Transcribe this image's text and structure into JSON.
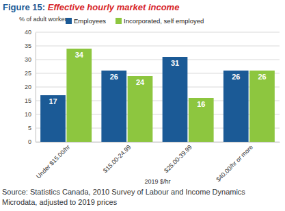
{
  "chart_data": {
    "type": "bar",
    "title": "Figure 15: Effective hourly market income",
    "y_label": "% of adult workers",
    "x_label": "2019 $/hr",
    "source": [
      "Source: Statistics Canada, 2010 Survey of Labour and Income Dynamics",
      "Microdata, adjusted to 2019 prices"
    ],
    "categories": [
      "Under $15.00/hr",
      "$15.00-24.99",
      "$25.00-39.99",
      "$40.00/hr or more"
    ],
    "series": [
      {
        "name": "Employees",
        "color": "#1b5a96",
        "values": [
          17,
          26,
          31,
          26
        ]
      },
      {
        "name": "Incorporated, self employed",
        "color": "#8dc63f",
        "values": [
          34,
          24,
          16,
          26
        ]
      }
    ],
    "ylim": [
      0,
      40
    ],
    "yticks": [
      0,
      5,
      10,
      15,
      20,
      25,
      30,
      35,
      40
    ],
    "grid": true,
    "data_labels": true,
    "legend": "top"
  }
}
